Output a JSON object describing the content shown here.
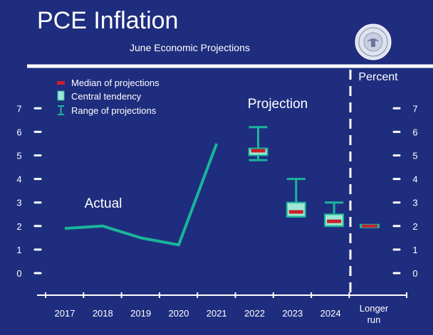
{
  "title": "PCE Inflation",
  "subtitle": "June Economic Projections",
  "unit_label": "Percent",
  "projection_label": "Projection",
  "actual_label": "Actual",
  "legend": {
    "median": "Median of projections",
    "central": "Central tendency",
    "range": "Range of projections"
  },
  "seal_icon": "federal-reserve-seal-icon",
  "colors": {
    "background": "#1f2d7e",
    "line": "#1ab59a",
    "box_fill": "#9fe6d6",
    "median": "#c8202a",
    "text": "#ffffff"
  },
  "chart_data": {
    "type": "line",
    "title": "PCE Inflation",
    "subtitle": "June Economic Projections",
    "ylabel": "Percent",
    "ylim": [
      0,
      7
    ],
    "yticks": [
      0,
      1,
      2,
      3,
      4,
      5,
      6,
      7
    ],
    "categories": [
      "2017",
      "2018",
      "2019",
      "2020",
      "2021",
      "2022",
      "2023",
      "2024",
      "Longer run"
    ],
    "actual": {
      "name": "Actual",
      "x": [
        "2017",
        "2018",
        "2019",
        "2020",
        "2021"
      ],
      "values": [
        1.9,
        2.0,
        1.5,
        1.2,
        5.5
      ]
    },
    "projections": [
      {
        "year": "2022",
        "range_low": 4.8,
        "range_high": 6.2,
        "central_low": 5.0,
        "central_high": 5.3,
        "median": 5.2
      },
      {
        "year": "2023",
        "range_low": 2.4,
        "range_high": 4.0,
        "central_low": 2.4,
        "central_high": 3.0,
        "median": 2.6
      },
      {
        "year": "2024",
        "range_low": 2.0,
        "range_high": 3.0,
        "central_low": 2.0,
        "central_high": 2.5,
        "median": 2.2
      }
    ],
    "longer_run": {
      "year": "Longer run",
      "range_low": 2.0,
      "range_high": 2.0,
      "central_low": 2.0,
      "central_high": 2.0,
      "median": 2.0
    }
  }
}
